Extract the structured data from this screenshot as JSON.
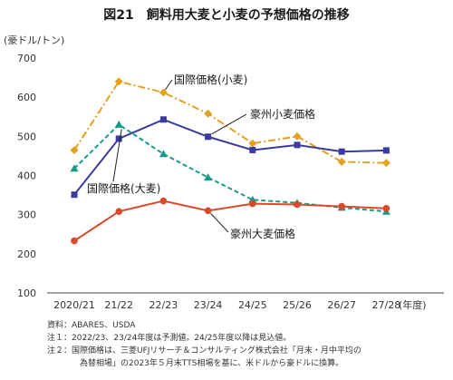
{
  "title": "図21　飼料用大麦と小麦の予想価格の推移",
  "chart_data": {
    "type": "line",
    "ylabel": "(豪ドル/トン)",
    "xlabel": "(年度)",
    "categories": [
      "2020/21",
      "21/22",
      "22/23",
      "23/24",
      "24/25",
      "25/26",
      "26/27",
      "27/28"
    ],
    "ylim": [
      100,
      700
    ],
    "yticks": [
      100,
      200,
      300,
      400,
      500,
      600,
      700
    ],
    "grid": false,
    "series": [
      {
        "name": "国際価格(小麦)",
        "color": "#e6a020",
        "style": "dashdot",
        "marker": "diamond",
        "values": [
          465,
          640,
          612,
          558,
          482,
          500,
          435,
          432
        ]
      },
      {
        "name": "豪州小麦価格",
        "color": "#3a3aa0",
        "style": "solid",
        "marker": "square",
        "values": [
          351,
          494,
          543,
          499,
          465,
          478,
          461,
          464
        ]
      },
      {
        "name": "国際価格(大麦)",
        "color": "#1a9a8a",
        "style": "dashed",
        "marker": "triangle",
        "values": [
          418,
          530,
          455,
          395,
          338,
          330,
          318,
          308
        ]
      },
      {
        "name": "豪州大麦価格",
        "color": "#d84a2a",
        "style": "solid",
        "marker": "circle",
        "values": [
          233,
          308,
          335,
          310,
          328,
          326,
          321,
          316
        ]
      }
    ]
  },
  "notes": {
    "source": "資料：ABARES、USDA",
    "note1": "注１：2022/23、23/24年度は予測値。24/25年度以降は見込値。",
    "note2a": "注２：国際価格は、三菱UFJリサーチ＆コンサルティング株式会社「月末・月中平均の",
    "note2b": "為替相場」の2023年５月末TTS相場を基に、米ドルから豪ドルに換算。"
  }
}
